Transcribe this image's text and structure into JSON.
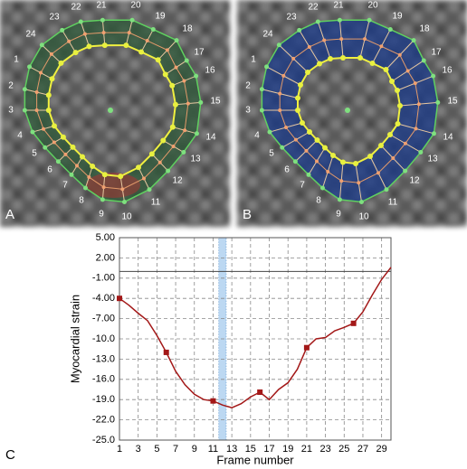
{
  "panels": [
    {
      "label": "A",
      "point_labels": [
        "1",
        "2",
        "3",
        "4",
        "5",
        "6",
        "7",
        "8",
        "9",
        "10",
        "11",
        "12",
        "13",
        "14",
        "15",
        "16",
        "17",
        "18",
        "19",
        "20",
        "21",
        "22",
        "23",
        "24"
      ]
    },
    {
      "label": "B",
      "point_labels": [
        "1",
        "2",
        "3",
        "4",
        "5",
        "6",
        "7",
        "8",
        "9",
        "10",
        "11",
        "12",
        "13",
        "14",
        "15",
        "16",
        "17",
        "18",
        "19",
        "20",
        "21",
        "22",
        "23",
        "24"
      ]
    }
  ],
  "chart_data": {
    "type": "line",
    "label": "C",
    "x_label": "Frame number",
    "y_label": "Myocardial strain",
    "x": [
      1,
      2,
      3,
      4,
      5,
      6,
      7,
      8,
      9,
      10,
      11,
      12,
      13,
      14,
      15,
      16,
      17,
      18,
      19,
      20,
      21,
      22,
      23,
      24,
      25,
      26,
      27,
      28,
      29,
      30
    ],
    "series": [
      {
        "color": "#a31818",
        "marker_every": 5,
        "values": [
          -4.0,
          -5.0,
          -6.2,
          -7.3,
          -9.5,
          -12.0,
          -14.8,
          -16.8,
          -18.2,
          -19.0,
          -19.2,
          -19.8,
          -20.2,
          -19.6,
          -18.6,
          -17.9,
          -19.0,
          -17.5,
          -16.5,
          -14.5,
          -11.3,
          -10.0,
          -9.8,
          -8.8,
          -8.3,
          -7.7,
          -6.0,
          -3.5,
          -1.2,
          0.6
        ]
      }
    ],
    "xlim": [
      1,
      30
    ],
    "xticks": [
      1,
      3,
      5,
      7,
      9,
      11,
      13,
      15,
      17,
      19,
      21,
      23,
      25,
      27,
      29
    ],
    "ylim": [
      -25,
      5
    ],
    "yticks": [
      {
        "value": 5,
        "label": "5.00"
      },
      {
        "value": 2,
        "label": "2.00"
      },
      {
        "value": -1,
        "label": "-1.00"
      },
      {
        "value": -4,
        "label": "-4.00"
      },
      {
        "value": -7,
        "label": "-7.00"
      },
      {
        "value": -10,
        "label": "-10.0"
      },
      {
        "value": -13,
        "label": "-13.0"
      },
      {
        "value": -16,
        "label": "-16.0"
      },
      {
        "value": -19,
        "label": "-19.0"
      },
      {
        "value": -22,
        "label": "-22.0"
      },
      {
        "value": -25,
        "label": "-25.0"
      }
    ],
    "grid": true,
    "hlines": [
      0
    ],
    "highlight_x": [
      11.6,
      12.4
    ]
  }
}
